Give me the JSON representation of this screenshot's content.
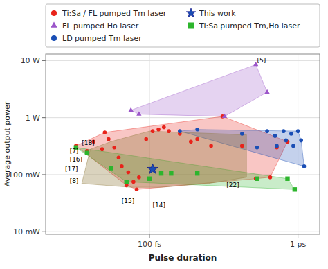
{
  "chart_data": {
    "type": "scatter",
    "log": true,
    "grid": true,
    "legend": "top",
    "xlabel": "Pulse duration",
    "ylabel": "Average output power",
    "xlim": [
      2e-14,
      1.4e-12
    ],
    "ylim": [
      0.009,
      13
    ],
    "xticks": [
      {
        "value": 1e-13,
        "label": "100 fs"
      },
      {
        "value": 1e-12,
        "label": "1 ps"
      }
    ],
    "yticks": [
      {
        "value": 0.01,
        "label": "10 mW"
      },
      {
        "value": 0.1,
        "label": "100 mW"
      },
      {
        "value": 1,
        "label": "1 W"
      },
      {
        "value": 10,
        "label": "10 W"
      }
    ],
    "series": [
      {
        "name": "Ti:Sa / FL pumped Tm laser",
        "color": "#e8231a",
        "marker": "circle",
        "x": [
          3.2e-14,
          3.8e-14,
          4.2e-14,
          4.8e-14,
          5e-14,
          5.3e-14,
          5.8e-14,
          6.2e-14,
          6.5e-14,
          7e-14,
          7.2e-14,
          7.8e-14,
          8.2e-14,
          8.5e-14,
          9.5e-14,
          1.05e-13,
          1.15e-13,
          1.25e-13,
          1.35e-13,
          1.6e-13,
          1.9e-13,
          2.1e-13,
          2.6e-13,
          3.1e-13,
          4.2e-13,
          5.2e-13,
          6.5e-13,
          7.2e-13,
          8.5e-13
        ],
        "values": [
          0.32,
          0.26,
          0.38,
          0.28,
          0.55,
          0.42,
          0.3,
          0.2,
          0.14,
          0.065,
          0.11,
          0.075,
          0.055,
          0.09,
          0.42,
          0.58,
          0.62,
          0.68,
          0.58,
          0.52,
          0.38,
          0.42,
          0.32,
          1.05,
          0.32,
          0.085,
          0.09,
          0.3,
          0.38
        ]
      },
      {
        "name": "FL pumped Ho laser",
        "color": "#9b55c9",
        "marker": "triangle",
        "x": [
          7.5e-14,
          8.5e-14,
          3.2e-13,
          5.2e-13,
          6.2e-13
        ],
        "values": [
          1.35,
          1.15,
          1.05,
          8.5,
          2.8
        ]
      },
      {
        "name": "LD pumped Tm laser",
        "color": "#1a4eb5",
        "marker": "circle",
        "x": [
          1.6e-13,
          2.1e-13,
          4.2e-13,
          5.3e-13,
          6.2e-13,
          7e-13,
          7.2e-13,
          8e-13,
          8.3e-13,
          9e-13,
          9.3e-13,
          1e-12,
          1.05e-12,
          1.1e-12
        ],
        "values": [
          0.58,
          0.62,
          0.52,
          0.3,
          0.58,
          0.48,
          0.32,
          0.58,
          0.4,
          0.52,
          0.32,
          0.58,
          0.4,
          0.14
        ]
      },
      {
        "name": "This work",
        "color": "#1a4eb5",
        "marker": "star",
        "x": [
          1.05e-13
        ],
        "values": [
          0.125
        ]
      },
      {
        "name": "Ti:Sa pumped Tm,Ho laser",
        "color": "#2db52d",
        "marker": "square",
        "x": [
          3.2e-14,
          3.8e-14,
          5.5e-14,
          7e-14,
          1e-13,
          1.2e-13,
          1.4e-13,
          2.1e-13,
          5.3e-13,
          8.5e-13,
          9.5e-13
        ],
        "values": [
          0.3,
          0.24,
          0.13,
          0.075,
          0.085,
          0.105,
          0.105,
          0.105,
          0.085,
          0.085,
          0.055
        ]
      },
      {
        "type": "area",
        "color": "#8b7536",
        "x": [
          3.5e-14,
          5e-14,
          7.5e-14,
          1.2e-13,
          2.5e-13,
          4.5e-13,
          4.5e-13,
          2e-13,
          1e-13,
          5.5e-14,
          4e-14
        ],
        "values": [
          0.07,
          0.065,
          0.06,
          0.06,
          0.07,
          0.09,
          0.5,
          0.42,
          0.58,
          0.38,
          0.28
        ]
      }
    ],
    "annotations": [
      {
        "text": "[18]",
        "x": 3.5e-14,
        "y": 0.335
      },
      {
        "text": "[7]",
        "x": 2.9e-14,
        "y": 0.24
      },
      {
        "text": "[16]",
        "x": 2.9e-14,
        "y": 0.17
      },
      {
        "text": "[17]",
        "x": 2.7e-14,
        "y": 0.115
      },
      {
        "text": "[8]",
        "x": 2.9e-14,
        "y": 0.072
      },
      {
        "text": "[15]",
        "x": 6.5e-14,
        "y": 0.032
      },
      {
        "text": "[14]",
        "x": 1.05e-13,
        "y": 0.027
      },
      {
        "text": "[22]",
        "x": 3.3e-13,
        "y": 0.06
      },
      {
        "text": "[5]",
        "x": 5.3e-13,
        "y": 9.2
      }
    ]
  }
}
